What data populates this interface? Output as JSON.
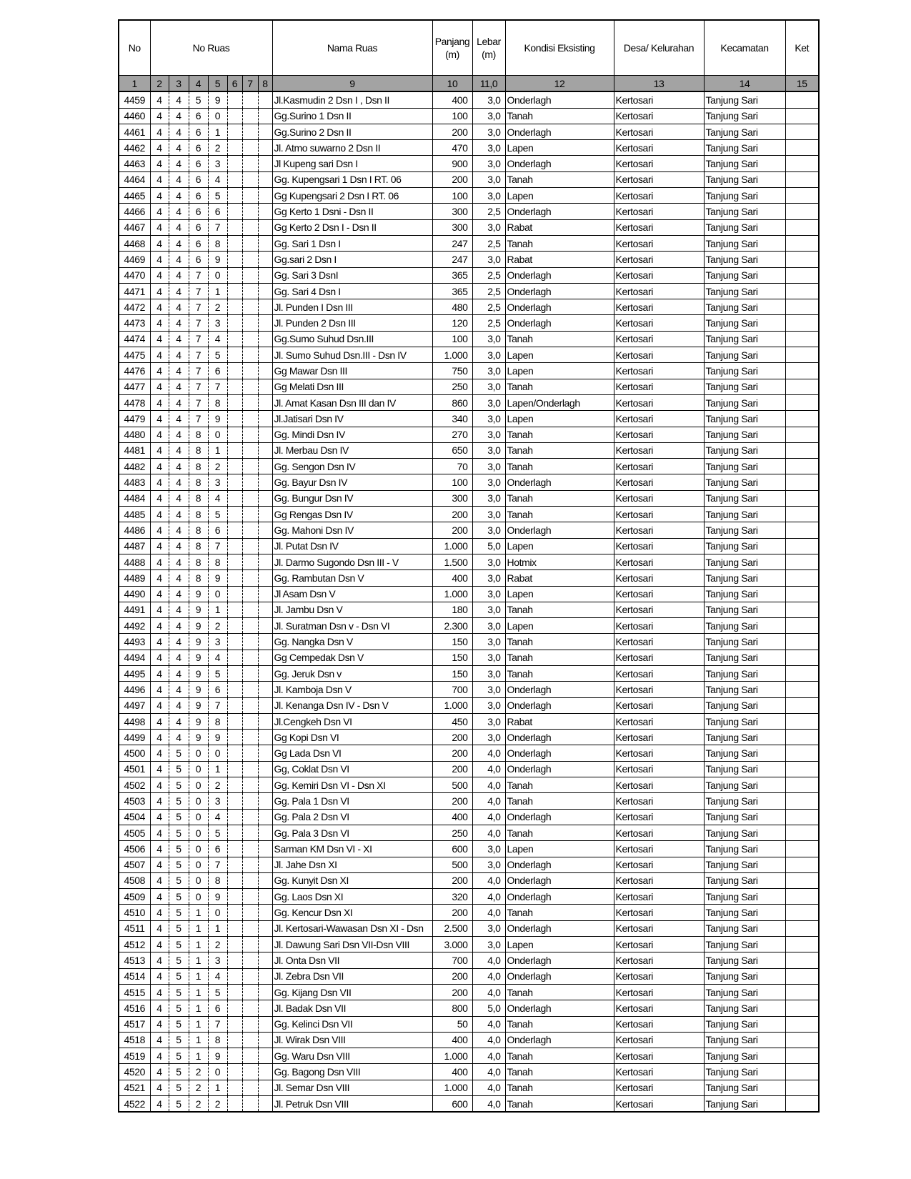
{
  "header": {
    "no": "No",
    "no_ruas": "No Ruas",
    "nama_ruas": "Nama Ruas",
    "panjang": "Panjang",
    "panjang_unit": "(m)",
    "lebar": "Lebar",
    "lebar_unit": "(m)",
    "kondisi": "Kondisi Eksisting",
    "desa": "Desa/ Kelurahan",
    "kecamatan": "Kecamatan",
    "ket": "Ket"
  },
  "column_numbers": [
    "1",
    "2",
    "3",
    "4",
    "5",
    "6",
    "7",
    "8",
    "9",
    "10",
    "11,0",
    "12",
    "13",
    "14",
    "15"
  ],
  "rows": [
    [
      "4459",
      "4",
      "4",
      "5",
      "9",
      "",
      "",
      "",
      "Jl.Kasmudin 2  Dsn I , Dsn II",
      "400",
      "3,0",
      "Onderlagh",
      "Kertosari",
      "Tanjung Sari",
      ""
    ],
    [
      "4460",
      "4",
      "4",
      "6",
      "0",
      "",
      "",
      "",
      "Gg.Surino 1  Dsn II",
      "100",
      "3,0",
      "Tanah",
      "Kertosari",
      "Tanjung Sari",
      ""
    ],
    [
      "4461",
      "4",
      "4",
      "6",
      "1",
      "",
      "",
      "",
      "Gg.Surino 2  Dsn II",
      "200",
      "3,0",
      "Onderlagh",
      "Kertosari",
      "Tanjung Sari",
      ""
    ],
    [
      "4462",
      "4",
      "4",
      "6",
      "2",
      "",
      "",
      "",
      "Jl. Atmo suwarno 2  Dsn II",
      "470",
      "3,0",
      "Lapen",
      "Kertosari",
      "Tanjung Sari",
      ""
    ],
    [
      "4463",
      "4",
      "4",
      "6",
      "3",
      "",
      "",
      "",
      "Jl   Kupeng sari  Dsn I",
      "900",
      "3,0",
      "Onderlagh",
      "Kertosari",
      "Tanjung Sari",
      ""
    ],
    [
      "4464",
      "4",
      "4",
      "6",
      "4",
      "",
      "",
      "",
      "Gg. Kupengsari 1  Dsn I RT. 06",
      "200",
      "3,0",
      "Tanah",
      "Kertosari",
      "Tanjung Sari",
      ""
    ],
    [
      "4465",
      "4",
      "4",
      "6",
      "5",
      "",
      "",
      "",
      "Gg Kupengsari 2  Dsn I RT. 06",
      "100",
      "3,0",
      "Lapen",
      "Kertosari",
      "Tanjung Sari",
      ""
    ],
    [
      "4466",
      "4",
      "4",
      "6",
      "6",
      "",
      "",
      "",
      "Gg Kerto 1  Dsni - Dsn II",
      "300",
      "2,5",
      "Onderlagh",
      "Kertosari",
      "Tanjung Sari",
      ""
    ],
    [
      "4467",
      "4",
      "4",
      "6",
      "7",
      "",
      "",
      "",
      "Gg Kerto 2  Dsn I - Dsn II",
      "300",
      "3,0",
      "Rabat",
      "Kertosari",
      "Tanjung Sari",
      ""
    ],
    [
      "4468",
      "4",
      "4",
      "6",
      "8",
      "",
      "",
      "",
      "Gg. Sari 1  Dsn I",
      "247",
      "2,5",
      "Tanah",
      "Kertosari",
      "Tanjung Sari",
      ""
    ],
    [
      "4469",
      "4",
      "4",
      "6",
      "9",
      "",
      "",
      "",
      "Gg.sari 2  Dsn I",
      "247",
      "3,0",
      "Rabat",
      "Kertosari",
      "Tanjung Sari",
      ""
    ],
    [
      "4470",
      "4",
      "4",
      "7",
      "0",
      "",
      "",
      "",
      "Gg. Sari 3  DsnI",
      "365",
      "2,5",
      "Onderlagh",
      "Kertosari",
      "Tanjung Sari",
      ""
    ],
    [
      "4471",
      "4",
      "4",
      "7",
      "1",
      "",
      "",
      "",
      "Gg. Sari 4  Dsn I",
      "365",
      "2,5",
      "Onderlagh",
      "Kertosari",
      "Tanjung Sari",
      ""
    ],
    [
      "4472",
      "4",
      "4",
      "7",
      "2",
      "",
      "",
      "",
      "Jl. Punden I  Dsn III",
      "480",
      "2,5",
      "Onderlagh",
      "Kertosari",
      "Tanjung Sari",
      ""
    ],
    [
      "4473",
      "4",
      "4",
      "7",
      "3",
      "",
      "",
      "",
      "Jl. Punden 2  Dsn III",
      "120",
      "2,5",
      "Onderlagh",
      "Kertosari",
      "Tanjung Sari",
      ""
    ],
    [
      "4474",
      "4",
      "4",
      "7",
      "4",
      "",
      "",
      "",
      "Gg.Sumo Suhud  Dsn.III",
      "100",
      "3,0",
      "Tanah",
      "Kertosari",
      "Tanjung Sari",
      ""
    ],
    [
      "4475",
      "4",
      "4",
      "7",
      "5",
      "",
      "",
      "",
      "Jl. Sumo Suhud  Dsn.III - Dsn IV",
      "1.000",
      "3,0",
      "Lapen",
      "Kertosari",
      "Tanjung Sari",
      ""
    ],
    [
      "4476",
      "4",
      "4",
      "7",
      "6",
      "",
      "",
      "",
      "Gg Mawar  Dsn III",
      "750",
      "3,0",
      "Lapen",
      "Kertosari",
      "Tanjung Sari",
      ""
    ],
    [
      "4477",
      "4",
      "4",
      "7",
      "7",
      "",
      "",
      "",
      "Gg Melati   Dsn III",
      "250",
      "3,0",
      "Tanah",
      "Kertosari",
      "Tanjung Sari",
      ""
    ],
    [
      "4478",
      "4",
      "4",
      "7",
      "8",
      "",
      "",
      "",
      "Jl. Amat Kasan  Dsn III dan IV",
      "860",
      "3,0",
      "Lapen/Onderlagh",
      "Kertosari",
      "Tanjung Sari",
      ""
    ],
    [
      "4479",
      "4",
      "4",
      "7",
      "9",
      "",
      "",
      "",
      "Jl.Jatisari  Dsn IV",
      "340",
      "3,0",
      "Lapen",
      "Kertosari",
      "Tanjung Sari",
      ""
    ],
    [
      "4480",
      "4",
      "4",
      "8",
      "0",
      "",
      "",
      "",
      "Gg. Mindi  Dsn IV",
      "270",
      "3,0",
      "Tanah",
      "Kertosari",
      "Tanjung Sari",
      ""
    ],
    [
      "4481",
      "4",
      "4",
      "8",
      "1",
      "",
      "",
      "",
      "Jl. Merbau  Dsn IV",
      "650",
      "3,0",
      "Tanah",
      "Kertosari",
      "Tanjung Sari",
      ""
    ],
    [
      "4482",
      "4",
      "4",
      "8",
      "2",
      "",
      "",
      "",
      "Gg. Sengon  Dsn IV",
      "70",
      "3,0",
      "Tanah",
      "Kertosari",
      "Tanjung Sari",
      ""
    ],
    [
      "4483",
      "4",
      "4",
      "8",
      "3",
      "",
      "",
      "",
      "Gg. Bayur  Dsn IV",
      "100",
      "3,0",
      "Onderlagh",
      "Kertosari",
      "Tanjung Sari",
      ""
    ],
    [
      "4484",
      "4",
      "4",
      "8",
      "4",
      "",
      "",
      "",
      "Gg. Bungur  Dsn IV",
      "300",
      "3,0",
      "Tanah",
      "Kertosari",
      "Tanjung Sari",
      ""
    ],
    [
      "4485",
      "4",
      "4",
      "8",
      "5",
      "",
      "",
      "",
      "Gg Rengas  Dsn IV",
      "200",
      "3,0",
      "Tanah",
      "Kertosari",
      "Tanjung Sari",
      ""
    ],
    [
      "4486",
      "4",
      "4",
      "8",
      "6",
      "",
      "",
      "",
      "Gg. Mahoni  Dsn IV",
      "200",
      "3,0",
      "Onderlagh",
      "Kertosari",
      "Tanjung Sari",
      ""
    ],
    [
      "4487",
      "4",
      "4",
      "8",
      "7",
      "",
      "",
      "",
      "Jl. Putat  Dsn IV",
      "1.000",
      "5,0",
      "Lapen",
      "Kertosari",
      "Tanjung Sari",
      ""
    ],
    [
      "4488",
      "4",
      "4",
      "8",
      "8",
      "",
      "",
      "",
      "Jl. Darmo Sugondo  Dsn III -  V",
      "1.500",
      "3,0",
      "Hotmix",
      "Kertosari",
      "Tanjung Sari",
      ""
    ],
    [
      "4489",
      "4",
      "4",
      "8",
      "9",
      "",
      "",
      "",
      "Gg. Rambutan   Dsn V",
      "400",
      "3,0",
      "Rabat",
      "Kertosari",
      "Tanjung Sari",
      ""
    ],
    [
      "4490",
      "4",
      "4",
      "9",
      "0",
      "",
      "",
      "",
      "Jl Asam  Dsn V",
      "1.000",
      "3,0",
      "Lapen",
      "Kertosari",
      "Tanjung Sari",
      ""
    ],
    [
      "4491",
      "4",
      "4",
      "9",
      "1",
      "",
      "",
      "",
      "Jl. Jambu  Dsn V",
      "180",
      "3,0",
      "Tanah",
      "Kertosari",
      "Tanjung Sari",
      ""
    ],
    [
      "4492",
      "4",
      "4",
      "9",
      "2",
      "",
      "",
      "",
      "Jl. Suratman  Dsn v - Dsn VI",
      "2.300",
      "3,0",
      "Lapen",
      "Kertosari",
      "Tanjung Sari",
      ""
    ],
    [
      "4493",
      "4",
      "4",
      "9",
      "3",
      "",
      "",
      "",
      "Gg. Nangka  Dsn V",
      "150",
      "3,0",
      "Tanah",
      "Kertosari",
      "Tanjung Sari",
      ""
    ],
    [
      "4494",
      "4",
      "4",
      "9",
      "4",
      "",
      "",
      "",
      "Gg Cempedak  Dsn V",
      "150",
      "3,0",
      "Tanah",
      "Kertosari",
      "Tanjung Sari",
      ""
    ],
    [
      "4495",
      "4",
      "4",
      "9",
      "5",
      "",
      "",
      "",
      "Gg. Jeruk   Dsn v",
      "150",
      "3,0",
      "Tanah",
      "Kertosari",
      "Tanjung Sari",
      ""
    ],
    [
      "4496",
      "4",
      "4",
      "9",
      "6",
      "",
      "",
      "",
      "Jl. Kamboja  Dsn V",
      "700",
      "3,0",
      "Onderlagh",
      "Kertosari",
      "Tanjung Sari",
      ""
    ],
    [
      "4497",
      "4",
      "4",
      "9",
      "7",
      "",
      "",
      "",
      "Jl. Kenanga  Dsn IV - Dsn V",
      "1.000",
      "3,0",
      "Onderlagh",
      "Kertosari",
      "Tanjung Sari",
      ""
    ],
    [
      "4498",
      "4",
      "4",
      "9",
      "8",
      "",
      "",
      "",
      "Jl.Cengkeh  Dsn VI",
      "450",
      "3,0",
      "Rabat",
      "Kertosari",
      "Tanjung Sari",
      ""
    ],
    [
      "4499",
      "4",
      "4",
      "9",
      "9",
      "",
      "",
      "",
      "Gg Kopi  Dsn VI",
      "200",
      "3,0",
      "Onderlagh",
      "Kertosari",
      "Tanjung Sari",
      ""
    ],
    [
      "4500",
      "4",
      "5",
      "0",
      "0",
      "",
      "",
      "",
      "Gg Lada  Dsn VI",
      "200",
      "4,0",
      "Onderlagh",
      "Kertosari",
      "Tanjung Sari",
      ""
    ],
    [
      "4501",
      "4",
      "5",
      "0",
      "1",
      "",
      "",
      "",
      "Gg, Coklat  Dsn VI",
      "200",
      "4,0",
      "Onderlagh",
      "Kertosari",
      "Tanjung Sari",
      ""
    ],
    [
      "4502",
      "4",
      "5",
      "0",
      "2",
      "",
      "",
      "",
      "Gg. Kemiri  Dsn VI - Dsn XI",
      "500",
      "4,0",
      "Tanah",
      "Kertosari",
      "Tanjung Sari",
      ""
    ],
    [
      "4503",
      "4",
      "5",
      "0",
      "3",
      "",
      "",
      "",
      "Gg.  Pala 1  Dsn VI",
      "200",
      "4,0",
      "Tanah",
      "Kertosari",
      "Tanjung Sari",
      ""
    ],
    [
      "4504",
      "4",
      "5",
      "0",
      "4",
      "",
      "",
      "",
      "Gg. Pala  2  Dsn VI",
      "400",
      "4,0",
      "Onderlagh",
      "Kertosari",
      "Tanjung Sari",
      ""
    ],
    [
      "4505",
      "4",
      "5",
      "0",
      "5",
      "",
      "",
      "",
      "Gg. Pala  3  Dsn VI",
      "250",
      "4,0",
      "Tanah",
      "Kertosari",
      "Tanjung Sari",
      ""
    ],
    [
      "4506",
      "4",
      "5",
      "0",
      "6",
      "",
      "",
      "",
      "Sarman  KM  Dsn VI - XI",
      "600",
      "3,0",
      "Lapen",
      "Kertosari",
      "Tanjung Sari",
      ""
    ],
    [
      "4507",
      "4",
      "5",
      "0",
      "7",
      "",
      "",
      "",
      "Jl. Jahe  Dsn XI",
      "500",
      "3,0",
      "Onderlagh",
      "Kertosari",
      "Tanjung Sari",
      ""
    ],
    [
      "4508",
      "4",
      "5",
      "0",
      "8",
      "",
      "",
      "",
      "Gg. Kunyit  Dsn XI",
      "200",
      "4,0",
      "Onderlagh",
      "Kertosari",
      "Tanjung Sari",
      ""
    ],
    [
      "4509",
      "4",
      "5",
      "0",
      "9",
      "",
      "",
      "",
      "Gg.  Laos  Dsn XI",
      "320",
      "4,0",
      "Onderlagh",
      "Kertosari",
      "Tanjung Sari",
      ""
    ],
    [
      "4510",
      "4",
      "5",
      "1",
      "0",
      "",
      "",
      "",
      "Gg. Kencur  Dsn XI",
      "200",
      "4,0",
      "Tanah",
      "Kertosari",
      "Tanjung Sari",
      ""
    ],
    [
      "4511",
      "4",
      "5",
      "1",
      "1",
      "",
      "",
      "",
      "Jl. Kertosari-Wawasan  Dsn XI - Dsn",
      "2.500",
      "3,0",
      "Onderlagh",
      "Kertosari",
      "Tanjung Sari",
      ""
    ],
    [
      "4512",
      "4",
      "5",
      "1",
      "2",
      "",
      "",
      "",
      "Jl. Dawung Sari  Dsn VII-Dsn VIII",
      "3.000",
      "3,0",
      "Lapen",
      "Kertosari",
      "Tanjung Sari",
      ""
    ],
    [
      "4513",
      "4",
      "5",
      "1",
      "3",
      "",
      "",
      "",
      "Jl. Onta  Dsn VII",
      "700",
      "4,0",
      "Onderlagh",
      "Kertosari",
      "Tanjung Sari",
      ""
    ],
    [
      "4514",
      "4",
      "5",
      "1",
      "4",
      "",
      "",
      "",
      "Jl. Zebra  Dsn VII",
      "200",
      "4,0",
      "Onderlagh",
      "Kertosari",
      "Tanjung Sari",
      ""
    ],
    [
      "4515",
      "4",
      "5",
      "1",
      "5",
      "",
      "",
      "",
      "Gg. Kijang  Dsn VII",
      "200",
      "4,0",
      "Tanah",
      "Kertosari",
      "Tanjung Sari",
      ""
    ],
    [
      "4516",
      "4",
      "5",
      "1",
      "6",
      "",
      "",
      "",
      "Jl. Badak  Dsn VII",
      "800",
      "5,0",
      "Onderlagh",
      "Kertosari",
      "Tanjung Sari",
      ""
    ],
    [
      "4517",
      "4",
      "5",
      "1",
      "7",
      "",
      "",
      "",
      "Gg. Kelinci  Dsn VII",
      "50",
      "4,0",
      "Tanah",
      "Kertosari",
      "Tanjung Sari",
      ""
    ],
    [
      "4518",
      "4",
      "5",
      "1",
      "8",
      "",
      "",
      "",
      "Jl. Wirak  Dsn VIII",
      "400",
      "4,0",
      "Onderlagh",
      "Kertosari",
      "Tanjung Sari",
      ""
    ],
    [
      "4519",
      "4",
      "5",
      "1",
      "9",
      "",
      "",
      "",
      "Gg. Waru  Dsn VIII",
      "1.000",
      "4,0",
      "Tanah",
      "Kertosari",
      "Tanjung Sari",
      ""
    ],
    [
      "4520",
      "4",
      "5",
      "2",
      "0",
      "",
      "",
      "",
      "Gg. Bagong  Dsn VIII",
      "400",
      "4,0",
      "Tanah",
      "Kertosari",
      "Tanjung Sari",
      ""
    ],
    [
      "4521",
      "4",
      "5",
      "2",
      "1",
      "",
      "",
      "",
      "Jl. Semar  Dsn VIII",
      "1.000",
      "4,0",
      "Tanah",
      "Kertosari",
      "Tanjung Sari",
      ""
    ],
    [
      "4522",
      "4",
      "5",
      "2",
      "2",
      "",
      "",
      "",
      "Jl. Petruk  Dsn VIII",
      "600",
      "4,0",
      "Tanah",
      "Kertosari",
      "Tanjung Sari",
      ""
    ]
  ]
}
